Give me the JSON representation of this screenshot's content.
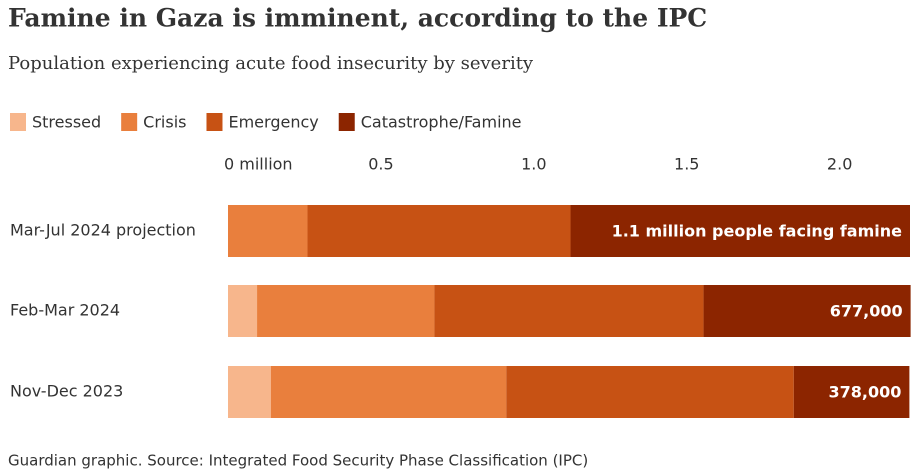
{
  "chart_data": {
    "type": "stacked-bar-horizontal",
    "title": "Famine in Gaza is imminent, according to the IPC",
    "subtitle": "Population experiencing acute food insecurity by severity",
    "source": "Guardian graphic. Source: Integrated Food Security Phase Classification (IPC)",
    "categories": [
      "Mar-Jul 2024 projection",
      "Feb-Mar 2024",
      "Nov-Dec 2023"
    ],
    "series": [
      {
        "name": "Stressed",
        "color": "#f7b68c",
        "values": [
          0,
          0.095,
          0.14
        ]
      },
      {
        "name": "Crisis",
        "color": "#e97f3d",
        "values": [
          0.26,
          0.58,
          0.77
        ]
      },
      {
        "name": "Emergency",
        "color": "#c75214",
        "values": [
          0.86,
          0.88,
          0.94
        ]
      },
      {
        "name": "Catastrophe/Famine",
        "color": "#8c2500",
        "values": [
          1.11,
          0.677,
          0.378
        ],
        "value_labels": [
          "1.1 million people facing famine",
          "677,000",
          "378,000"
        ]
      }
    ],
    "xlim": [
      0,
      2.23
    ],
    "xticks": [
      {
        "value": 0,
        "label": "0 million"
      },
      0.5,
      {
        "value": 1,
        "label": "1.0"
      },
      1.5,
      {
        "value": 2,
        "label": "2.0"
      }
    ],
    "legend": "top-left"
  }
}
